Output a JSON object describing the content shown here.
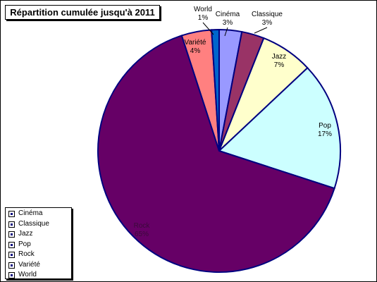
{
  "chart_data": {
    "type": "pie",
    "title": "Répartition cumulée jusqu'à 2011",
    "slices": [
      {
        "category": "Cinéma",
        "percent": 3,
        "label": "3%",
        "color": "#9999ff"
      },
      {
        "category": "Classique",
        "percent": 3,
        "label": "3%",
        "color": "#993366"
      },
      {
        "category": "Jazz",
        "percent": 7,
        "label": "7%",
        "color": "#ffffcc"
      },
      {
        "category": "Pop",
        "percent": 17,
        "label": "17%",
        "color": "#ccffff"
      },
      {
        "category": "Rock",
        "percent": 65,
        "label": "65%",
        "color": "#660066"
      },
      {
        "category": "Variété",
        "percent": 4,
        "label": "4%",
        "color": "#ff8080"
      },
      {
        "category": "World",
        "percent": 1,
        "label": "1%",
        "color": "#0066cc"
      }
    ],
    "legend_position": "bottom-left",
    "slice_border_color": "#000080"
  },
  "legend": {
    "items": [
      "Cinéma",
      "Classique",
      "Jazz",
      "Pop",
      "Rock",
      "Variété",
      "World"
    ]
  }
}
